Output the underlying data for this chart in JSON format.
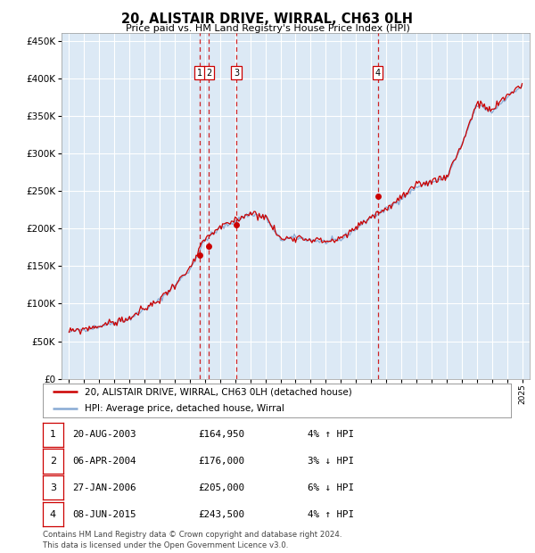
{
  "title": "20, ALISTAIR DRIVE, WIRRAL, CH63 0LH",
  "subtitle": "Price paid vs. HM Land Registry's House Price Index (HPI)",
  "ylim": [
    0,
    460000
  ],
  "yticks": [
    0,
    50000,
    100000,
    150000,
    200000,
    250000,
    300000,
    350000,
    400000,
    450000
  ],
  "xlim_start": 1994.5,
  "xlim_end": 2025.5,
  "xticks": [
    1995,
    1996,
    1997,
    1998,
    1999,
    2000,
    2001,
    2002,
    2003,
    2004,
    2005,
    2006,
    2007,
    2008,
    2009,
    2010,
    2011,
    2012,
    2013,
    2014,
    2015,
    2016,
    2017,
    2018,
    2019,
    2020,
    2021,
    2022,
    2023,
    2024,
    2025
  ],
  "line_color_house": "#cc0000",
  "line_color_hpi": "#88aad4",
  "transaction_color": "#cc0000",
  "vline_color": "#cc0000",
  "plot_bg": "#dce9f5",
  "grid_color": "#ffffff",
  "transactions": [
    {
      "id": 1,
      "date": "20-AUG-2003",
      "year": 2003.64,
      "price": 164950,
      "pct": "4%",
      "dir": "↑"
    },
    {
      "id": 2,
      "date": "06-APR-2004",
      "year": 2004.27,
      "price": 176000,
      "pct": "3%",
      "dir": "↓"
    },
    {
      "id": 3,
      "date": "27-JAN-2006",
      "year": 2006.08,
      "price": 205000,
      "pct": "6%",
      "dir": "↓"
    },
    {
      "id": 4,
      "date": "08-JUN-2015",
      "year": 2015.44,
      "price": 243500,
      "pct": "4%",
      "dir": "↑"
    }
  ],
  "legend_house_label": "20, ALISTAIR DRIVE, WIRRAL, CH63 0LH (detached house)",
  "legend_hpi_label": "HPI: Average price, detached house, Wirral",
  "footer_line1": "Contains HM Land Registry data © Crown copyright and database right 2024.",
  "footer_line2": "This data is licensed under the Open Government Licence v3.0.",
  "table_rows": [
    [
      "1",
      "20-AUG-2003",
      "£164,950",
      "4% ↑ HPI"
    ],
    [
      "2",
      "06-APR-2004",
      "£176,000",
      "3% ↓ HPI"
    ],
    [
      "3",
      "27-JAN-2006",
      "£205,000",
      "6% ↓ HPI"
    ],
    [
      "4",
      "08-JUN-2015",
      "£243,500",
      "4% ↑ HPI"
    ]
  ],
  "hpi_pts_x": [
    1995,
    1997,
    1999,
    2001,
    2003,
    2004,
    2005,
    2006,
    2007,
    2008,
    2009,
    2010,
    2011,
    2012,
    2013,
    2014,
    2015,
    2016,
    2017,
    2018,
    2019,
    2020,
    2021,
    2022,
    2023,
    2024,
    2025
  ],
  "hpi_pts_y": [
    62000,
    70000,
    80000,
    105000,
    145000,
    185000,
    200000,
    210000,
    220000,
    215000,
    185000,
    188000,
    185000,
    182000,
    185000,
    200000,
    215000,
    225000,
    240000,
    255000,
    262000,
    268000,
    310000,
    365000,
    355000,
    375000,
    390000
  ]
}
